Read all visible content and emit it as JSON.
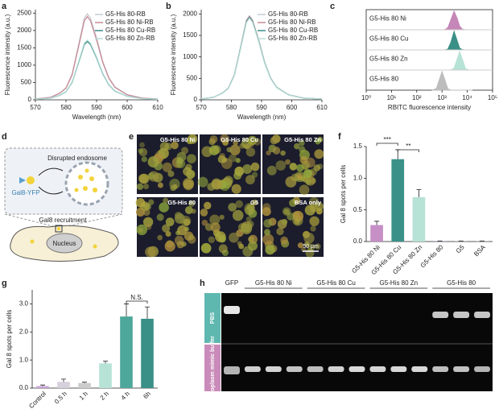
{
  "panels": [
    "a",
    "b",
    "c",
    "d",
    "e",
    "f",
    "g",
    "h"
  ],
  "chart_data": [
    {
      "type": "line",
      "xlabel": "Wavelength (nm)",
      "ylabel": "Fluorescence intensity (a.u.)",
      "x": [
        570,
        575,
        578,
        580,
        582,
        584,
        586,
        587,
        588,
        590,
        592,
        594,
        596,
        600,
        605,
        610
      ],
      "xlim": [
        570,
        610
      ],
      "xticks": [
        570,
        580,
        590,
        600,
        610
      ],
      "ylim": [
        0,
        2600
      ],
      "yticks": [
        0,
        500,
        1000,
        1500,
        2000,
        2500
      ],
      "series": [
        {
          "name": "G5-His 80-RB",
          "color": "#c3cbd3",
          "values": [
            25,
            74,
            198,
            347,
            744,
            1538,
            2356,
            2480,
            2356,
            1786,
            1116,
            645,
            372,
            149,
            50,
            25
          ]
        },
        {
          "name": "G5-His 80 Ni-RB",
          "color": "#c98a96",
          "values": [
            24,
            72,
            192,
            336,
            720,
            1488,
            2280,
            2400,
            2280,
            1728,
            1080,
            624,
            360,
            144,
            48,
            24
          ]
        },
        {
          "name": "G5-His 80 Cu-RB",
          "color": "#3d8a8a",
          "values": [
            17,
            50,
            134,
            235,
            504,
            1042,
            1596,
            1680,
            1596,
            1210,
            756,
            437,
            252,
            101,
            34,
            17
          ]
        },
        {
          "name": "G5-His 80 Zn-RB",
          "color": "#b5ddd6",
          "values": [
            17,
            52,
            138,
            241,
            516,
            1066,
            1634,
            1720,
            1634,
            1238,
            774,
            447,
            258,
            103,
            34,
            17
          ]
        }
      ]
    },
    {
      "type": "line",
      "xlabel": "Wavelength (nm)",
      "ylabel": "Fluorescence intensity (a.u.)",
      "x": [
        570,
        574,
        577,
        579,
        581,
        583,
        585,
        586,
        587,
        589,
        591,
        593,
        595,
        599,
        604,
        610
      ],
      "xlim": [
        570,
        610
      ],
      "xticks": [
        570,
        580,
        590,
        600,
        610
      ],
      "ylim": [
        0,
        2100
      ],
      "yticks": [
        0,
        500,
        1000,
        1500,
        2000
      ],
      "series": [
        {
          "name": "G5-His 80-RB",
          "color": "#c3cbd3",
          "values": [
            20,
            59,
            157,
            274,
            588,
            1215,
            1862,
            1960,
            1862,
            1411,
            882,
            510,
            294,
            118,
            39,
            20
          ]
        },
        {
          "name": "G5-His 80 Ni-RB",
          "color": "#c98a96",
          "values": [
            19,
            58,
            155,
            272,
            582,
            1203,
            1843,
            1940,
            1843,
            1397,
            873,
            504,
            291,
            116,
            39,
            19
          ]
        },
        {
          "name": "G5-His 80 Cu-RB",
          "color": "#3d8a8a",
          "values": [
            19,
            58,
            154,
            269,
            576,
            1190,
            1824,
            1920,
            1824,
            1382,
            864,
            499,
            288,
            115,
            38,
            19
          ]
        },
        {
          "name": "G5-His 80 Zn-RB",
          "color": "#b5ddd6",
          "values": [
            19,
            57,
            152,
            266,
            570,
            1178,
            1805,
            1900,
            1805,
            1368,
            855,
            494,
            285,
            114,
            38,
            19
          ]
        }
      ]
    },
    {
      "type": "ridgeline",
      "xlabel": "RBITC fluorescence intensity",
      "log_x": true,
      "x": [
        400,
        600,
        800,
        1000,
        1300,
        1700,
        2200,
        3000,
        4000,
        5000,
        6500,
        8500,
        12000,
        16000
      ],
      "xlim": [
        1,
        100000
      ],
      "xticks": [
        {
          "value": 1,
          "label": "10⁰"
        },
        {
          "value": 10,
          "label": "10¹"
        },
        {
          "value": 100,
          "label": "10²"
        },
        {
          "value": 1000,
          "label": "10³"
        },
        {
          "value": 10000,
          "label": "10⁴"
        },
        {
          "value": 100000,
          "label": "10⁵"
        }
      ],
      "series": [
        {
          "name": "G5-His 80 Ni",
          "color": "#c586b8",
          "values": [
            0,
            0,
            0,
            0,
            0.01,
            0.11,
            0.51,
            1,
            0.61,
            0.19,
            0.02,
            0,
            0,
            0
          ]
        },
        {
          "name": "G5-His 80 Cu",
          "color": "#3a8f86",
          "values": [
            0,
            0,
            0,
            0,
            0,
            0.04,
            0.38,
            1,
            0.49,
            0.09,
            0.01,
            0,
            0,
            0
          ]
        },
        {
          "name": "G5-His 80 Zn",
          "color": "#b7e2d6",
          "values": [
            0,
            0,
            0,
            0,
            0,
            0,
            0,
            0.09,
            0.61,
            1,
            0.55,
            0.07,
            0,
            0
          ]
        },
        {
          "name": "G5-His 80",
          "color": "#bdbdbd",
          "values": [
            0,
            0.09,
            0.61,
            1,
            0.55,
            0.07,
            0,
            0,
            0,
            0,
            0,
            0,
            0,
            0
          ]
        }
      ]
    },
    {
      "type": "bar",
      "ylabel": "Gal 8 spots per cells",
      "categories": [
        "G5-His 80 Ni",
        "G5-His 80 Cu",
        "G5-His 80 Zn",
        "G5-His 80",
        "G5",
        "BSA"
      ],
      "values": [
        0.26,
        1.3,
        0.7,
        0.005,
        0.005,
        0.005
      ],
      "errors": [
        0.06,
        0.15,
        0.12,
        0.005,
        0.005,
        0.005
      ],
      "colors": [
        "#c68fc6",
        "#3a9188",
        "#b7e2d6",
        "#9a7fb0",
        "#9a9a9a",
        "#9a9a9a"
      ],
      "ylim": [
        0,
        1.5
      ],
      "yticks": [
        {
          "value": 0,
          "label": "0.0"
        },
        0.5,
        {
          "value": 1,
          "label": "1.0"
        },
        1.5
      ],
      "significance": [
        "***",
        "**"
      ]
    },
    {
      "type": "bar",
      "ylabel": "Gal 8 spots per cells",
      "categories": [
        "Control",
        "0.5 h",
        "1 h",
        "2 h",
        "4 h",
        "6h"
      ],
      "values": [
        0.07,
        0.22,
        0.18,
        0.88,
        2.55,
        2.47
      ],
      "errors": [
        0.04,
        0.1,
        0.03,
        0.08,
        0.45,
        0.42
      ],
      "colors": [
        "#c9a6d6",
        "#d6cfdc",
        "#cccccc",
        "#b7e2d6",
        "#4ea79b",
        "#3a8f86"
      ],
      "ylim": [
        0,
        3.5
      ],
      "yticks": [
        {
          "value": 0,
          "label": "0.0"
        },
        {
          "value": 1,
          "label": "1.0"
        },
        {
          "value": 2,
          "label": "2.0"
        },
        {
          "value": 3,
          "label": "3.0"
        }
      ],
      "significance": [
        "N.S."
      ]
    }
  ],
  "diagram": {
    "endosome": "Disrupted endosome",
    "protein": "Gal8-YFP",
    "recruitment": "Gal8 recruitment",
    "nucleus": "Nucleus"
  },
  "micrographs": {
    "labels": [
      "G5-His 80 Ni",
      "G5-His 80 Cu",
      "G5-His 80 Zn",
      "G5-His 80",
      "G5",
      "BSA only"
    ],
    "scale_bar": "50 μm"
  },
  "gel": {
    "lanes": [
      "GFP",
      "G5-His 80 Ni",
      "G5-His 80 Cu",
      "G5-His 80 Zn",
      "G5-His 80"
    ],
    "rows": [
      "PBS",
      "Cytoplasm mimic buffer"
    ]
  }
}
